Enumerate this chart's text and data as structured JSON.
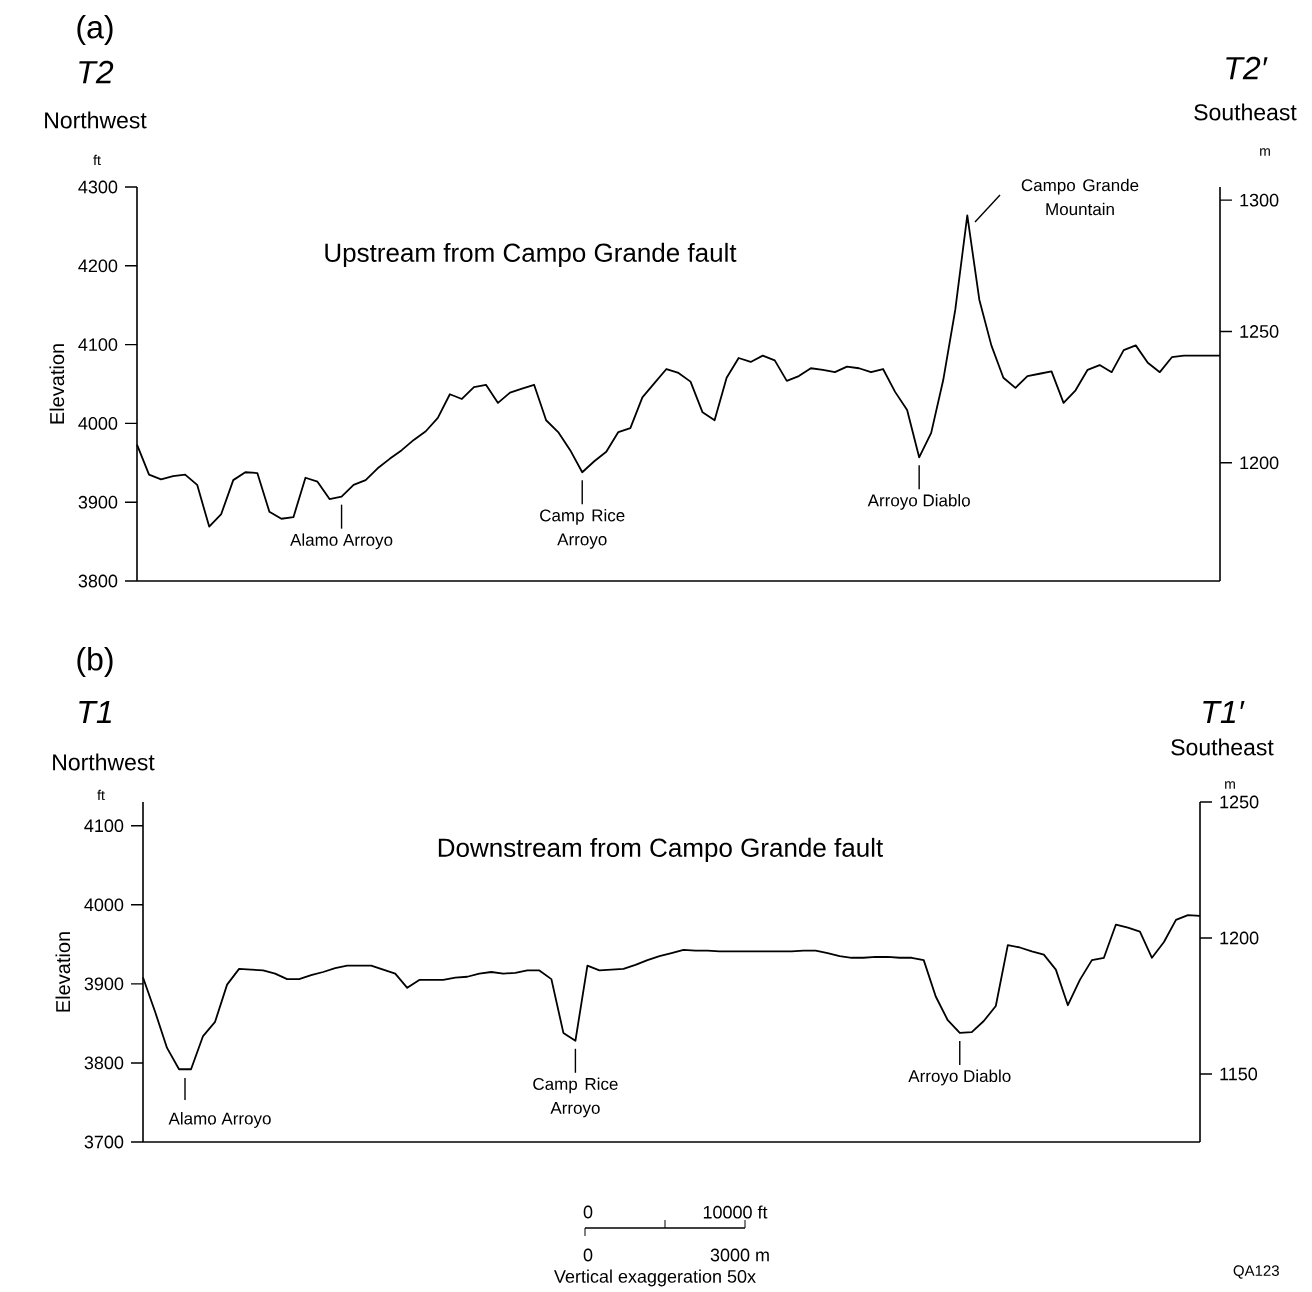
{
  "chart_data": [
    {
      "type": "line",
      "title": "(a)",
      "subtitle": "Upstream from Campo Grande fault",
      "ylabel": "Elevation",
      "color": "#000000",
      "categories": [
        null,
        null,
        null,
        null,
        null,
        null,
        null,
        null,
        null,
        null,
        null,
        null,
        null,
        null,
        null,
        null,
        null,
        null,
        null,
        null,
        null,
        null,
        null,
        null,
        null,
        null,
        null,
        null,
        null,
        null,
        null,
        null,
        null,
        null,
        null,
        null,
        null,
        null,
        null,
        null,
        null,
        null,
        null,
        null,
        null,
        null,
        null,
        null,
        null,
        null,
        null,
        null,
        null,
        null,
        null,
        null,
        null,
        null,
        null,
        null,
        null,
        null,
        null,
        null,
        null,
        null,
        null,
        null,
        null,
        null,
        null,
        null,
        null,
        null,
        null,
        null,
        null,
        null,
        null,
        null,
        null,
        null,
        null,
        null,
        null,
        null,
        null,
        null,
        null,
        null,
        null
      ],
      "values": [
        3973,
        3935,
        3929,
        3933,
        3935,
        3922,
        3869,
        3885,
        3928,
        3938,
        3937,
        3888,
        3879,
        3881,
        3931,
        3926,
        3904,
        3907,
        3922,
        3928,
        3943,
        3955,
        3966,
        3979,
        3990,
        4007,
        4037,
        4031,
        4046,
        4049,
        4026,
        4039,
        4044,
        4049,
        4004,
        3989,
        3966,
        3938,
        3952,
        3964,
        3989,
        3994,
        4033,
        4051,
        4069,
        4064,
        4053,
        4014,
        4004,
        4058,
        4083,
        4078,
        4086,
        4080,
        4054,
        4060,
        4070,
        4068,
        4065,
        4072,
        4070,
        4065,
        4069,
        4040,
        4017,
        3957,
        3988,
        4055,
        4144,
        4264,
        4157,
        4099,
        4058,
        4045,
        4060,
        4063,
        4066,
        4026,
        4042,
        4068,
        4074,
        4065,
        4093,
        4099,
        4077,
        4065,
        4084,
        4086,
        4086,
        4086,
        4086
      ],
      "ylim": [
        3800,
        4300
      ],
      "yticks": [
        3800,
        3900,
        4000,
        4100,
        4200,
        4300
      ],
      "y2lim": [
        1155,
        1305
      ],
      "y2ticks": [
        1200,
        1250,
        1300
      ],
      "annotations": [
        "T2",
        "T2′",
        "Northwest",
        "Southeast",
        "ft",
        "m",
        {
          "text": "Alamo Arroyo",
          "y": 3907
        },
        {
          "text": "Camp Rice Arroyo",
          "y": 3938
        },
        {
          "text": "Arroyo Diablo",
          "y": 3957
        },
        "Campo Grande Mountain"
      ]
    },
    {
      "type": "line",
      "title": "(b)",
      "subtitle": "Downstream from Campo Grande fault",
      "ylabel": "Elevation",
      "color": "#000000",
      "categories": [
        null,
        null,
        null,
        null,
        null,
        null,
        null,
        null,
        null,
        null,
        null,
        null,
        null,
        null,
        null,
        null,
        null,
        null,
        null,
        null,
        null,
        null,
        null,
        null,
        null,
        null,
        null,
        null,
        null,
        null,
        null,
        null,
        null,
        null,
        null,
        null,
        null,
        null,
        null,
        null,
        null,
        null,
        null,
        null,
        null,
        null,
        null,
        null,
        null,
        null,
        null,
        null,
        null,
        null,
        null,
        null,
        null,
        null,
        null,
        null,
        null,
        null,
        null,
        null,
        null,
        null,
        null,
        null,
        null,
        null,
        null,
        null,
        null,
        null,
        null,
        null,
        null,
        null,
        null,
        null,
        null,
        null,
        null,
        null,
        null,
        null,
        null,
        null,
        null
      ],
      "values": [
        3908,
        3865,
        3819,
        3792,
        3792,
        3834,
        3852,
        3899,
        3919,
        3918,
        3917,
        3913,
        3906,
        3906,
        3911,
        3915,
        3920,
        3923,
        3923,
        3923,
        3918,
        3913,
        3895,
        3905,
        3905,
        3905,
        3908,
        3909,
        3913,
        3915,
        3913,
        3914,
        3917,
        3917,
        3906,
        3838,
        3828,
        3923,
        3917,
        3918,
        3919,
        3924,
        3930,
        3935,
        3939,
        3943,
        3942,
        3942,
        3941,
        3941,
        3941,
        3941,
        3941,
        3941,
        3941,
        3942,
        3942,
        3939,
        3935,
        3933,
        3933,
        3934,
        3934,
        3933,
        3933,
        3930,
        3884,
        3854,
        3838,
        3839,
        3853,
        3872,
        3949,
        3946,
        3941,
        3937,
        3918,
        3873,
        3905,
        3930,
        3933,
        3975,
        3971,
        3966,
        3933,
        3953,
        3981,
        3987,
        3986
      ],
      "ylim": [
        3700,
        4130
      ],
      "yticks": [
        3700,
        3800,
        3900,
        4000,
        4100
      ],
      "y2lim": [
        1125,
        1250
      ],
      "y2ticks": [
        1150,
        1200,
        1250
      ],
      "annotations": [
        "T1",
        "T1′",
        "Northwest",
        "Southeast",
        "ft",
        "m",
        "Alamo Arroyo",
        {
          "text": "Camp Rice Arroyo",
          "y": 3828
        },
        {
          "text": "Arroyo Diablo",
          "y": 3838
        },
        "0",
        "10000 ft",
        "0",
        "3000 m",
        "Vertical exaggeration 50x",
        "QA123"
      ]
    }
  ]
}
